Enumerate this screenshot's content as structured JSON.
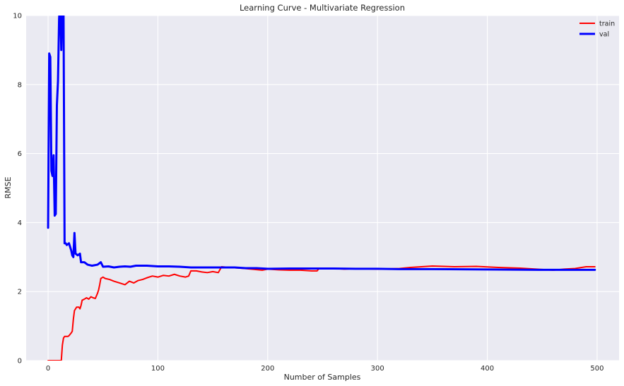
{
  "chart_data": {
    "type": "line",
    "title": "Learning Curve - Multivariate Regression",
    "xlabel": "Number of Samples",
    "ylabel": "RMSE",
    "xlim": [
      -20,
      520
    ],
    "ylim": [
      0,
      10
    ],
    "xticks": [
      0,
      100,
      200,
      300,
      400,
      500
    ],
    "yticks": [
      0,
      2,
      4,
      6,
      8,
      10
    ],
    "grid": true,
    "legend_position": "top-right",
    "background": "#eaeaf2",
    "series": [
      {
        "name": "train",
        "color": "#ff0000",
        "line_width": 2,
        "points": [
          [
            0,
            0
          ],
          [
            12,
            0
          ],
          [
            13,
            0.45
          ],
          [
            14,
            0.65
          ],
          [
            15,
            0.7
          ],
          [
            18,
            0.7
          ],
          [
            19,
            0.72
          ],
          [
            21,
            0.8
          ],
          [
            22,
            0.85
          ],
          [
            23,
            1.2
          ],
          [
            24,
            1.45
          ],
          [
            26,
            1.55
          ],
          [
            28,
            1.55
          ],
          [
            29,
            1.5
          ],
          [
            30,
            1.6
          ],
          [
            31,
            1.75
          ],
          [
            33,
            1.78
          ],
          [
            35,
            1.82
          ],
          [
            37,
            1.78
          ],
          [
            39,
            1.85
          ],
          [
            41,
            1.82
          ],
          [
            43,
            1.8
          ],
          [
            45,
            1.95
          ],
          [
            46,
            2.05
          ],
          [
            47,
            2.2
          ],
          [
            48,
            2.38
          ],
          [
            50,
            2.42
          ],
          [
            52,
            2.38
          ],
          [
            56,
            2.35
          ],
          [
            60,
            2.3
          ],
          [
            65,
            2.25
          ],
          [
            70,
            2.2
          ],
          [
            74,
            2.3
          ],
          [
            78,
            2.25
          ],
          [
            82,
            2.32
          ],
          [
            86,
            2.35
          ],
          [
            90,
            2.4
          ],
          [
            95,
            2.45
          ],
          [
            100,
            2.42
          ],
          [
            105,
            2.47
          ],
          [
            110,
            2.45
          ],
          [
            115,
            2.5
          ],
          [
            120,
            2.45
          ],
          [
            125,
            2.42
          ],
          [
            128,
            2.45
          ],
          [
            130,
            2.6
          ],
          [
            135,
            2.6
          ],
          [
            140,
            2.57
          ],
          [
            145,
            2.55
          ],
          [
            150,
            2.58
          ],
          [
            155,
            2.55
          ],
          [
            158,
            2.72
          ],
          [
            165,
            2.7
          ],
          [
            175,
            2.68
          ],
          [
            185,
            2.65
          ],
          [
            195,
            2.62
          ],
          [
            200,
            2.65
          ],
          [
            210,
            2.63
          ],
          [
            220,
            2.62
          ],
          [
            230,
            2.62
          ],
          [
            240,
            2.6
          ],
          [
            245,
            2.6
          ],
          [
            247,
            2.68
          ],
          [
            260,
            2.67
          ],
          [
            270,
            2.65
          ],
          [
            280,
            2.67
          ],
          [
            300,
            2.65
          ],
          [
            320,
            2.67
          ],
          [
            330,
            2.7
          ],
          [
            340,
            2.72
          ],
          [
            350,
            2.74
          ],
          [
            370,
            2.72
          ],
          [
            390,
            2.73
          ],
          [
            410,
            2.7
          ],
          [
            430,
            2.68
          ],
          [
            450,
            2.64
          ],
          [
            460,
            2.62
          ],
          [
            470,
            2.65
          ],
          [
            480,
            2.67
          ],
          [
            490,
            2.72
          ],
          [
            498,
            2.72
          ]
        ]
      },
      {
        "name": "val",
        "color": "#0000ff",
        "line_width": 3,
        "points": [
          [
            0,
            3.85
          ],
          [
            1,
            8.9
          ],
          [
            2,
            8.8
          ],
          [
            3,
            5.5
          ],
          [
            4,
            5.35
          ],
          [
            5,
            5.95
          ],
          [
            6,
            4.2
          ],
          [
            7,
            4.25
          ],
          [
            8,
            7.4
          ],
          [
            9,
            8.1
          ],
          [
            10,
            9.9
          ],
          [
            11,
            10.5
          ],
          [
            12,
            9.0
          ],
          [
            13,
            10.5
          ],
          [
            14,
            10.5
          ],
          [
            15,
            3.4
          ],
          [
            16,
            3.4
          ],
          [
            17,
            3.35
          ],
          [
            19,
            3.4
          ],
          [
            21,
            3.2
          ],
          [
            22,
            3.05
          ],
          [
            23,
            3.0
          ],
          [
            24,
            3.7
          ],
          [
            25,
            3.1
          ],
          [
            27,
            3.05
          ],
          [
            29,
            3.1
          ],
          [
            30,
            2.85
          ],
          [
            33,
            2.85
          ],
          [
            36,
            2.78
          ],
          [
            40,
            2.75
          ],
          [
            45,
            2.78
          ],
          [
            48,
            2.85
          ],
          [
            50,
            2.72
          ],
          [
            55,
            2.73
          ],
          [
            60,
            2.7
          ],
          [
            65,
            2.72
          ],
          [
            70,
            2.73
          ],
          [
            75,
            2.72
          ],
          [
            80,
            2.75
          ],
          [
            90,
            2.75
          ],
          [
            100,
            2.73
          ],
          [
            110,
            2.73
          ],
          [
            120,
            2.72
          ],
          [
            130,
            2.7
          ],
          [
            140,
            2.7
          ],
          [
            150,
            2.7
          ],
          [
            160,
            2.7
          ],
          [
            170,
            2.7
          ],
          [
            180,
            2.68
          ],
          [
            190,
            2.68
          ],
          [
            200,
            2.66
          ],
          [
            220,
            2.67
          ],
          [
            240,
            2.67
          ],
          [
            260,
            2.67
          ],
          [
            280,
            2.66
          ],
          [
            300,
            2.66
          ],
          [
            320,
            2.65
          ],
          [
            350,
            2.65
          ],
          [
            400,
            2.64
          ],
          [
            450,
            2.63
          ],
          [
            498,
            2.63
          ]
        ]
      }
    ]
  }
}
